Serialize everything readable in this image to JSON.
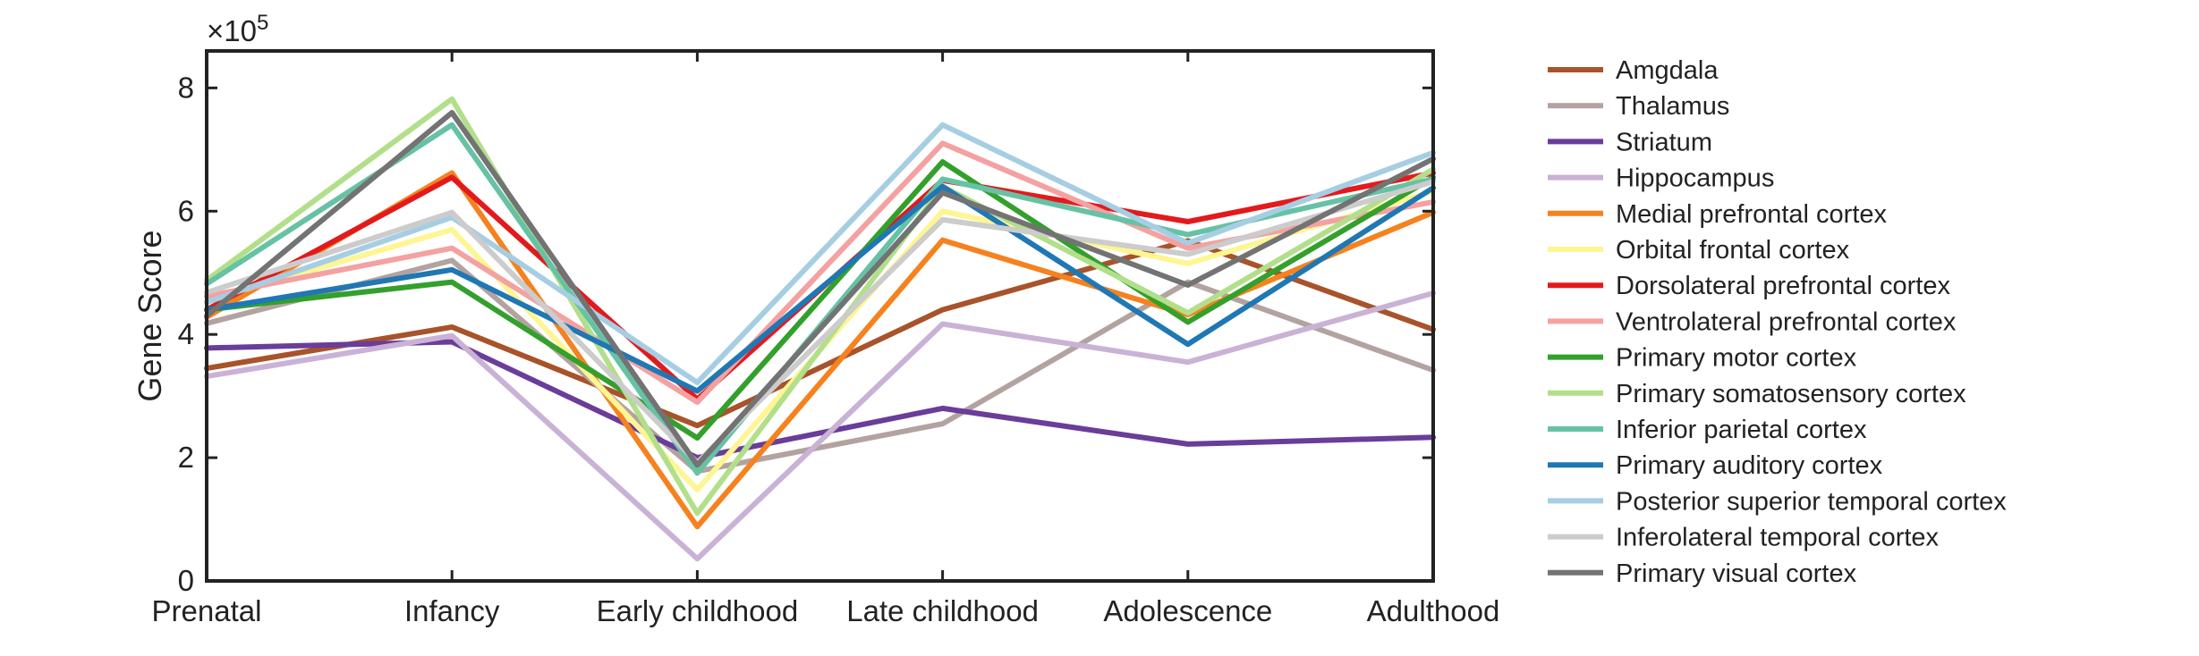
{
  "chart_data": {
    "type": "line",
    "xlabel": "",
    "ylabel": "Gene Score",
    "y_multiplier": "×10",
    "y_exponent": "5",
    "ylim": [
      0,
      860000
    ],
    "yticks": [
      0,
      200000,
      400000,
      600000,
      800000
    ],
    "ytick_labels": [
      "0",
      "2",
      "4",
      "6",
      "8"
    ],
    "categories": [
      "Prenatal",
      "Infancy",
      "Early childhood",
      "Late childhood",
      "Adolescence",
      "Adulthood"
    ],
    "grid": false,
    "legend_position": "right",
    "series": [
      {
        "name": "Amgdala",
        "color": "#a8532a",
        "values": [
          345000,
          412000,
          252000,
          440000,
          552000,
          408000
        ]
      },
      {
        "name": "Thalamus",
        "color": "#b3a3a0",
        "values": [
          418000,
          520000,
          178000,
          255000,
          485000,
          342000
        ]
      },
      {
        "name": "Striatum",
        "color": "#6a3d9a",
        "values": [
          378000,
          388000,
          200000,
          280000,
          222000,
          233000
        ]
      },
      {
        "name": "Hippocampus",
        "color": "#cab2d6",
        "values": [
          332000,
          398000,
          36000,
          417000,
          355000,
          467000
        ]
      },
      {
        "name": "Medial prefrontal cortex",
        "color": "#f5821f",
        "values": [
          428000,
          662000,
          88000,
          553000,
          432000,
          598000
        ]
      },
      {
        "name": "Orbital frontal cortex",
        "color": "#fef593",
        "values": [
          455000,
          570000,
          148000,
          600000,
          515000,
          632000
        ]
      },
      {
        "name": "Dorsolateral prefrontal cortex",
        "color": "#e31a1c",
        "values": [
          440000,
          655000,
          295000,
          650000,
          583000,
          662000
        ]
      },
      {
        "name": "Ventrolateral prefrontal cortex",
        "color": "#f4a1a1",
        "values": [
          462000,
          540000,
          290000,
          710000,
          540000,
          615000
        ]
      },
      {
        "name": "Primary motor cortex",
        "color": "#33a02c",
        "values": [
          440000,
          485000,
          232000,
          680000,
          420000,
          655000
        ]
      },
      {
        "name": "Primary somatosensory cortex",
        "color": "#b2df8a",
        "values": [
          488000,
          782000,
          110000,
          640000,
          435000,
          668000
        ]
      },
      {
        "name": "Inferior parietal cortex",
        "color": "#66c2a5",
        "values": [
          482000,
          740000,
          175000,
          652000,
          562000,
          652000
        ]
      },
      {
        "name": "Primary auditory cortex",
        "color": "#1f78b4",
        "values": [
          440000,
          505000,
          308000,
          640000,
          384000,
          638000
        ]
      },
      {
        "name": "Posterior superior temporal cortex",
        "color": "#a6cee3",
        "values": [
          452000,
          590000,
          322000,
          740000,
          548000,
          695000
        ]
      },
      {
        "name": "Inferolateral temporal cortex",
        "color": "#cccccc",
        "values": [
          468000,
          598000,
          192000,
          586000,
          530000,
          648000
        ]
      },
      {
        "name": "Primary visual cortex",
        "color": "#737373",
        "values": [
          430000,
          760000,
          188000,
          630000,
          480000,
          685000
        ]
      }
    ]
  }
}
